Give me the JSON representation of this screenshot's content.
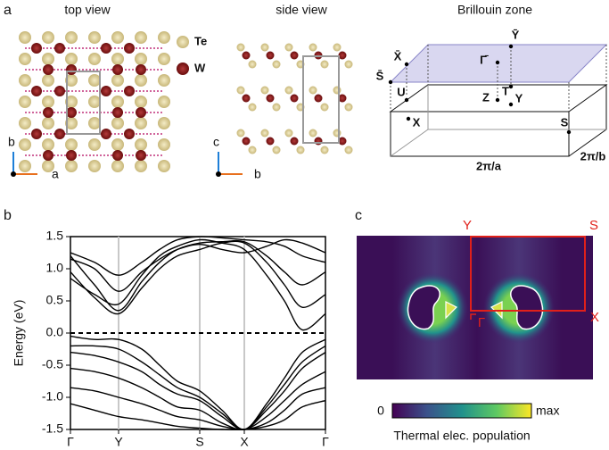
{
  "panel_labels": [
    "a",
    "b",
    "c"
  ],
  "structure": {
    "top_view": "top view",
    "side_view": "side view",
    "legend": [
      "Te",
      "W"
    ],
    "top_axes": [
      "b",
      "a"
    ],
    "side_axes": [
      "c",
      "b"
    ]
  },
  "brillouin_zone": {
    "title": "Brillouin zone",
    "points": [
      "Ȳ",
      "X̄",
      "S̄",
      "Γ̄",
      "U",
      "X",
      "Z",
      "T",
      "Y",
      "S"
    ],
    "edges": [
      "2π/a",
      "2π/b"
    ]
  },
  "chart_data": {
    "type": "line",
    "ylabel": "Energy (eV)",
    "x": [
      0,
      0.27,
      0.54,
      0.8,
      1.0,
      1.2,
      1.45,
      1.7,
      1.95,
      2.2,
      2.4,
      2.6,
      2.86
    ],
    "xlim": [
      0,
      2.86
    ],
    "ylim": [
      -1.5,
      1.5
    ],
    "xticks": [
      {
        "value": 0,
        "label": "Γ"
      },
      {
        "value": 0.54,
        "label": "Y"
      },
      {
        "value": 1.45,
        "label": "S"
      },
      {
        "value": 1.95,
        "label": "X"
      },
      {
        "value": 2.86,
        "label": "Γ"
      }
    ],
    "yticks": [
      1.5,
      {
        "value": 1,
        "label": "1.0"
      },
      0.5,
      {
        "value": 0,
        "label": "0.0"
      },
      -0.5,
      {
        "value": -1,
        "label": "-1.0"
      },
      -1.5
    ],
    "xgrid": true,
    "hline": 0,
    "series": [
      {
        "color": "#000000",
        "values": [
          1.2,
          0.75,
          0.35,
          0.8,
          1.1,
          1.3,
          1.4,
          1.42,
          1.42,
          1.2,
          0.95,
          0.75,
          0.95
        ]
      },
      {
        "color": "#000000",
        "values": [
          0.85,
          0.6,
          0.45,
          0.9,
          1.2,
          1.35,
          1.45,
          1.4,
          1.3,
          0.9,
          0.5,
          0.05,
          0.3
        ]
      },
      {
        "color": "#000000",
        "values": [
          1.25,
          1.1,
          0.9,
          1.1,
          1.3,
          1.45,
          1.5,
          1.48,
          1.45,
          1.42,
          1.35,
          1.2,
          1.1
        ]
      },
      {
        "color": "#000000",
        "values": [
          0.95,
          0.55,
          0.3,
          0.7,
          1.0,
          1.2,
          1.3,
          1.4,
          1.4,
          1.1,
          0.75,
          0.4,
          0.6
        ]
      },
      {
        "color": "#000000",
        "values": [
          1.15,
          1.0,
          0.65,
          0.95,
          1.15,
          1.3,
          1.38,
          1.3,
          1.25,
          1.35,
          1.45,
          1.4,
          1.25
        ]
      },
      {
        "color": "#000000",
        "values": [
          -0.05,
          -0.1,
          -0.1,
          -0.25,
          -0.5,
          -0.75,
          -0.9,
          -1.2,
          -1.5,
          -1.1,
          -0.7,
          -0.3,
          -0.1
        ]
      },
      {
        "color": "#000000",
        "values": [
          -0.3,
          -0.35,
          -0.45,
          -0.6,
          -0.8,
          -0.95,
          -1.05,
          -1.3,
          -1.5,
          -1.2,
          -0.9,
          -0.55,
          -0.3
        ]
      },
      {
        "color": "#000000",
        "values": [
          -0.55,
          -0.6,
          -0.7,
          -0.85,
          -1.0,
          -1.15,
          -1.2,
          -1.4,
          -1.5,
          -1.3,
          -1.05,
          -0.8,
          -0.6
        ]
      },
      {
        "color": "#000000",
        "values": [
          -0.85,
          -0.9,
          -1.0,
          -1.1,
          -1.2,
          -1.3,
          -1.35,
          -1.45,
          -1.5,
          -1.4,
          -1.2,
          -0.95,
          -0.85
        ]
      },
      {
        "color": "#000000",
        "values": [
          -1.1,
          -1.2,
          -1.3,
          -1.35,
          -1.4,
          -1.45,
          -1.48,
          -1.5,
          -1.5,
          -1.45,
          -1.35,
          -1.15,
          -1.05
        ]
      },
      {
        "color": "#000000",
        "values": [
          -0.2,
          -0.2,
          -0.25,
          -0.45,
          -0.65,
          -0.85,
          -1.0,
          -1.25,
          -1.5,
          -1.15,
          -0.8,
          -0.45,
          -0.2
        ]
      }
    ]
  },
  "heatmap": {
    "corners": [
      "Y",
      "S",
      "X",
      "Γ"
    ],
    "colorbar": [
      "0",
      "max"
    ],
    "label": "Thermal elec. population"
  }
}
